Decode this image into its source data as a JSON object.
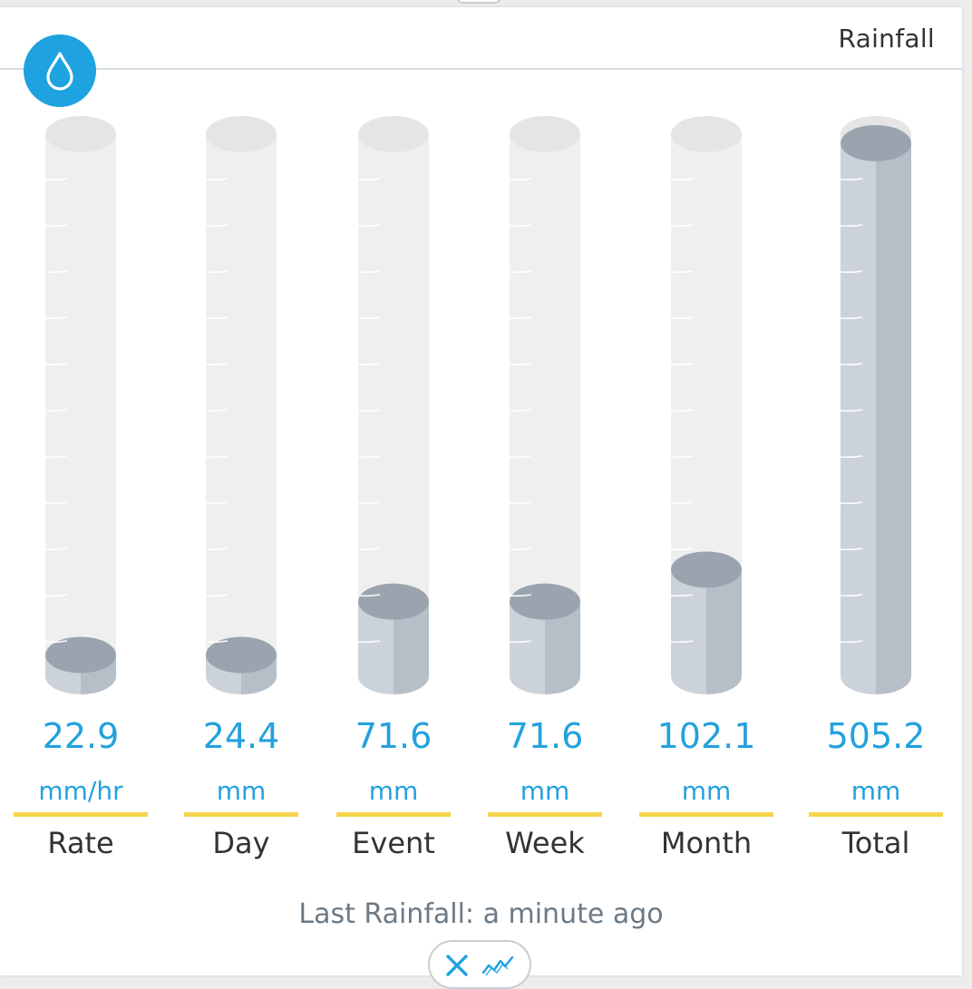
{
  "widget": {
    "title": "Rainfall",
    "icon": "water-drop-icon",
    "accent_color": "#1ea2e0",
    "value_color": "#23a1de",
    "underline_color": "#f5d34b",
    "fill_color": "#c4cad2",
    "empty_tube_color": "#ececec"
  },
  "columns": [
    {
      "value": "22.9",
      "unit": "mm/hr",
      "label": "Rate",
      "fill_fraction": 0.04
    },
    {
      "value": "24.4",
      "unit": "mm",
      "label": "Day",
      "fill_fraction": 0.04
    },
    {
      "value": "71.6",
      "unit": "mm",
      "label": "Event",
      "fill_fraction": 0.14
    },
    {
      "value": "71.6",
      "unit": "mm",
      "label": "Week",
      "fill_fraction": 0.14
    },
    {
      "value": "102.1",
      "unit": "mm",
      "label": "Month",
      "fill_fraction": 0.2
    },
    {
      "value": "505.2",
      "unit": "mm",
      "label": "Total",
      "fill_fraction": 1.0
    }
  ],
  "footer": {
    "last_rainfall": "Last Rainfall: a minute ago",
    "toggle_icons": [
      "close-icon",
      "chart-line-icon"
    ]
  }
}
